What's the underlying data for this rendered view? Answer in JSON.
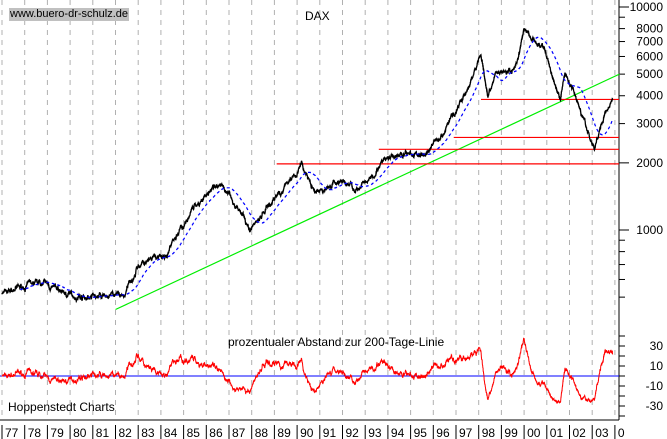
{
  "header": {
    "source": "www.buero-dr-schulz.de"
  },
  "chart_data": [
    {
      "type": "line",
      "title": "DAX",
      "yscale": "log",
      "ylim": [
        400,
        11000
      ],
      "yticks": [
        10000,
        8000,
        7000,
        6000,
        5000,
        4000,
        3000,
        2000,
        1000
      ],
      "xlim": [
        1977,
        2004.2
      ],
      "xtick_labels": [
        "77",
        "78",
        "79",
        "80",
        "81",
        "82",
        "83",
        "84",
        "85",
        "86",
        "87",
        "88",
        "89",
        "90",
        "91",
        "92",
        "93",
        "94",
        "95",
        "96",
        "97",
        "98",
        "99",
        "00",
        "01",
        "02",
        "03",
        "0"
      ],
      "grid": "vertical dashed",
      "series": [
        {
          "color": "#000000",
          "style": "solid",
          "x": [
            1977.1,
            1978.7,
            1980.0,
            1981.3,
            1982.4,
            1983.0,
            1984.2,
            1985.2,
            1986.1,
            1987.0,
            1987.9,
            1989.0,
            1990.2,
            1990.8,
            1991.9,
            1992.8,
            1993.6,
            1994.5,
            1995.6,
            1996.5,
            1997.6,
            1998.1,
            1998.4,
            1998.8,
            1999.6,
            2000.0,
            2000.9,
            2001.6,
            2001.8,
            2002.4,
            2002.9,
            2003.1,
            2003.6,
            2003.9
          ],
          "y": [
            522,
            585,
            510,
            500,
            510,
            700,
            750,
            1170,
            1510,
            1500,
            1000,
            1390,
            1960,
            1430,
            1670,
            1510,
            1960,
            2170,
            2170,
            2800,
            4470,
            5890,
            3830,
            5110,
            5320,
            7870,
            6400,
            3830,
            5100,
            3800,
            2530,
            2280,
            3450,
            3900
          ]
        },
        {
          "color": "#0000ff",
          "style": "dashed",
          "description_key": "200-Tage-Linie"
        }
      ],
      "trendline": {
        "color": "#00ee00",
        "from": [
          1982.0,
          440
        ],
        "to": [
          2004.2,
          5000
        ]
      },
      "support_lines": {
        "color": "#ff0000",
        "levels": [
          {
            "value": 3850,
            "from": 1998.1
          },
          {
            "value": 2600,
            "from": 1996.9
          },
          {
            "value": 2300,
            "from": 1993.6
          },
          {
            "value": 1980,
            "from": 1989.1
          }
        ]
      }
    },
    {
      "type": "line",
      "title": "prozentualer Abstand zur 200-Tage-Linie",
      "ylim": [
        -45,
        40
      ],
      "yticks": [
        30,
        10,
        -10,
        -30
      ],
      "series": [
        {
          "color": "#ff0000"
        }
      ],
      "zero_line_color": "#0000ff"
    }
  ],
  "footer": {
    "credit": "Hoppenstedt Charts"
  }
}
